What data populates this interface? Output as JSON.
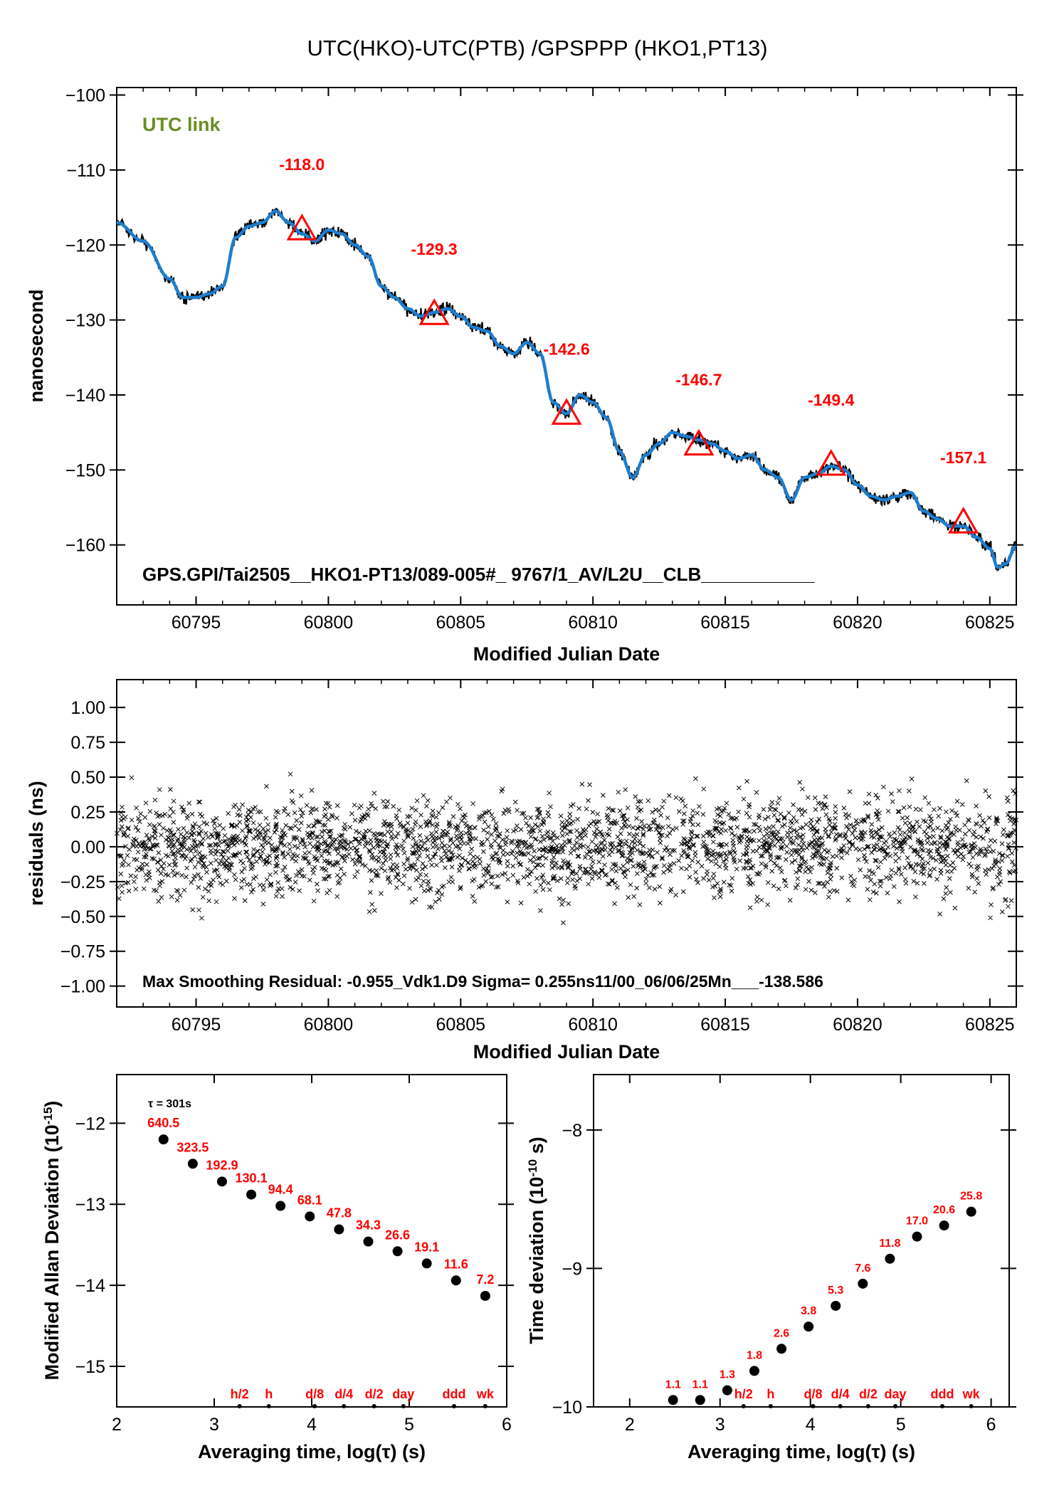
{
  "figure": {
    "title": "UTC(HKO)-UTC(PTB)  /GPSPPP  (HKO1,PT13)"
  },
  "chart_data": [
    {
      "id": "time-series",
      "type": "line",
      "title": "UTC(HKO)-UTC(PTB)  /GPSPPP  (HKO1,PT13)",
      "xlabel": "Modified Julian Date",
      "ylabel": "nanosecond",
      "xlim": [
        60792.0,
        60826.0
      ],
      "ylim": [
        -168,
        -99
      ],
      "xticks": [
        60795,
        60800,
        60805,
        60810,
        60815,
        60820,
        60825
      ],
      "xtick_labels": [
        "60795",
        "60800",
        "60805",
        "60810",
        "60815",
        "60820",
        "60825"
      ],
      "yticks": [
        -100,
        -110,
        -120,
        -130,
        -140,
        -150,
        -160
      ],
      "ytick_labels": [
        "−100",
        "−110",
        "−120",
        "−130",
        "−140",
        "−150",
        "−160"
      ],
      "legend_text": "UTC link",
      "footer_text": "GPS.GPI/Tai2505__HKO1-PT13/089-005#_  9767/1_AV/L2U__CLB___________",
      "series_colors": {
        "raw": "#000000",
        "smoothed": "#1e7ed0",
        "markers": "#ff0000",
        "legend": "#6b8e23"
      },
      "x": [
        60792.0,
        60793.0,
        60794.0,
        60794.5,
        60795.0,
        60795.5,
        60796.0,
        60796.5,
        60797.0,
        60797.5,
        60798.0,
        60798.5,
        60799.0,
        60799.5,
        60800.0,
        60800.5,
        60801.0,
        60801.5,
        60802.0,
        60802.5,
        60803.0,
        60803.5,
        60804.0,
        60804.5,
        60805.0,
        60805.5,
        60806.0,
        60806.5,
        60807.0,
        60807.5,
        60808.0,
        60808.5,
        60809.0,
        60809.5,
        60810.0,
        60810.5,
        60811.0,
        60811.5,
        60812.0,
        60812.5,
        60813.0,
        60813.5,
        60814.0,
        60814.5,
        60815.0,
        60815.5,
        60816.0,
        60816.5,
        60817.0,
        60817.5,
        60818.0,
        60818.5,
        60819.0,
        60819.5,
        60820.0,
        60820.5,
        60821.0,
        60821.5,
        60822.0,
        60822.5,
        60823.0,
        60823.5,
        60824.0,
        60824.5,
        60825.0,
        60825.3,
        60825.6,
        60826.0
      ],
      "y": [
        -117.0,
        -119.5,
        -124.5,
        -127.0,
        -127.0,
        -126.5,
        -125.5,
        -119.0,
        -117.5,
        -117.0,
        -115.5,
        -117.0,
        -118.5,
        -119.5,
        -118.0,
        -118.5,
        -120.0,
        -121.5,
        -125.5,
        -127.0,
        -128.5,
        -129.5,
        -129.0,
        -128.5,
        -129.5,
        -131.0,
        -131.5,
        -133.5,
        -134.5,
        -133.0,
        -134.5,
        -141.0,
        -142.5,
        -140.0,
        -141.0,
        -143.0,
        -147.5,
        -151.0,
        -148.0,
        -146.5,
        -145.0,
        -145.5,
        -146.0,
        -146.5,
        -147.5,
        -148.5,
        -148.0,
        -150.0,
        -151.0,
        -154.0,
        -151.0,
        -150.5,
        -149.5,
        -150.0,
        -152.0,
        -153.5,
        -154.0,
        -153.5,
        -153.0,
        -155.5,
        -156.5,
        -157.5,
        -157.5,
        -159.0,
        -160.5,
        -163.0,
        -162.5,
        -160.0
      ],
      "markers": [
        {
          "x": 60799,
          "y": -118.0,
          "label": "-118.0"
        },
        {
          "x": 60804,
          "y": -129.3,
          "label": "-129.3"
        },
        {
          "x": 60809,
          "y": -142.6,
          "label": "-142.6"
        },
        {
          "x": 60814,
          "y": -146.7,
          "label": "-146.7"
        },
        {
          "x": 60819,
          "y": -149.4,
          "label": "-149.4"
        },
        {
          "x": 60824,
          "y": -157.1,
          "label": "-157.1"
        }
      ]
    },
    {
      "id": "residuals",
      "type": "scatter",
      "xlabel": "Modified Julian Date",
      "ylabel": "residuals (ns)",
      "xlim": [
        60792.0,
        60826.0
      ],
      "ylim": [
        -1.15,
        1.2
      ],
      "xticks": [
        60795,
        60800,
        60805,
        60810,
        60815,
        60820,
        60825
      ],
      "xtick_labels": [
        "60795",
        "60800",
        "60805",
        "60810",
        "60815",
        "60820",
        "60825"
      ],
      "yticks": [
        1.0,
        0.75,
        0.5,
        0.25,
        0.0,
        -0.25,
        -0.5,
        -0.75,
        -1.0
      ],
      "ytick_labels": [
        "1.00",
        "0.75",
        "0.50",
        "0.25",
        "0.00",
        "−0.25",
        "−0.50",
        "−0.75",
        "−1.00"
      ],
      "footer_text": "Max Smoothing Residual: -0.955_Vdk1.D9  Sigma= 0.255ns11/00_06/06/25Mn___-138.586",
      "sigma": 0.255,
      "max_residual": -0.955
    },
    {
      "id": "mdev",
      "type": "scatter",
      "xlabel": "Averaging time, log(τ) (s)",
      "ylabel_main": "Modified Allan Deviation (10",
      "ylabel_exp": "-15",
      "ylabel_end": ")",
      "xlim": [
        2,
        6
      ],
      "ylim": [
        -15.5,
        -11.4
      ],
      "xticks": [
        2,
        3,
        4,
        5,
        6
      ],
      "xtick_labels": [
        "2",
        "3",
        "4",
        "5",
        "6"
      ],
      "yticks": [
        -12,
        -13,
        -14,
        -15
      ],
      "ytick_labels": [
        "−12",
        "−13",
        "−14",
        "−15"
      ],
      "tau_note": "τ = 301s",
      "points": [
        {
          "x": 2.48,
          "y": -12.2,
          "label": "640.5"
        },
        {
          "x": 2.78,
          "y": -12.5,
          "label": "323.5"
        },
        {
          "x": 3.08,
          "y": -12.72,
          "label": "192.9"
        },
        {
          "x": 3.38,
          "y": -12.88,
          "label": "130.1"
        },
        {
          "x": 3.68,
          "y": -13.02,
          "label": "94.4"
        },
        {
          "x": 3.98,
          "y": -13.15,
          "label": "68.1"
        },
        {
          "x": 4.28,
          "y": -13.31,
          "label": "47.8"
        },
        {
          "x": 4.58,
          "y": -13.46,
          "label": "34.3"
        },
        {
          "x": 4.88,
          "y": -13.58,
          "label": "26.6"
        },
        {
          "x": 5.18,
          "y": -13.73,
          "label": "19.1"
        },
        {
          "x": 5.48,
          "y": -13.94,
          "label": "11.6"
        },
        {
          "x": 5.78,
          "y": -14.13,
          "label": "7.2"
        }
      ],
      "time_marks": [
        {
          "x": 3.26,
          "label": "h/2"
        },
        {
          "x": 3.56,
          "label": "h"
        },
        {
          "x": 4.03,
          "label": "d/8"
        },
        {
          "x": 4.33,
          "label": "d/4"
        },
        {
          "x": 4.64,
          "label": "d/2"
        },
        {
          "x": 4.94,
          "label": "day"
        },
        {
          "x": 5.46,
          "label": "ddd"
        },
        {
          "x": 5.78,
          "label": "wk"
        }
      ]
    },
    {
      "id": "tdev",
      "type": "scatter",
      "xlabel": "Averaging time, log(τ) (s)",
      "ylabel_main": "Time deviation (10",
      "ylabel_exp": "-10",
      "ylabel_end": " s)",
      "xlim": [
        1.6,
        6.2
      ],
      "ylim": [
        -10.0,
        -7.6
      ],
      "xticks": [
        2,
        3,
        4,
        5,
        6
      ],
      "xtick_labels": [
        "2",
        "3",
        "4",
        "5",
        "6"
      ],
      "yticks": [
        -8,
        -9,
        -10
      ],
      "ytick_labels": [
        "−8",
        "−9",
        "−10"
      ],
      "points": [
        {
          "x": 2.48,
          "y": -9.95,
          "label": "1.1"
        },
        {
          "x": 2.78,
          "y": -9.95,
          "label": "1.1"
        },
        {
          "x": 3.08,
          "y": -9.88,
          "label": "1.3"
        },
        {
          "x": 3.38,
          "y": -9.74,
          "label": "1.8"
        },
        {
          "x": 3.68,
          "y": -9.58,
          "label": "2.6"
        },
        {
          "x": 3.98,
          "y": -9.42,
          "label": "3.8"
        },
        {
          "x": 4.28,
          "y": -9.27,
          "label": "5.3"
        },
        {
          "x": 4.58,
          "y": -9.11,
          "label": "7.6"
        },
        {
          "x": 4.88,
          "y": -8.93,
          "label": "11.8"
        },
        {
          "x": 5.18,
          "y": -8.77,
          "label": "17.0"
        },
        {
          "x": 5.48,
          "y": -8.69,
          "label": "20.6"
        },
        {
          "x": 5.78,
          "y": -8.59,
          "label": "25.8"
        }
      ],
      "time_marks": [
        {
          "x": 3.26,
          "label": "h/2"
        },
        {
          "x": 3.56,
          "label": "h"
        },
        {
          "x": 4.03,
          "label": "d/8"
        },
        {
          "x": 4.33,
          "label": "d/4"
        },
        {
          "x": 4.64,
          "label": "d/2"
        },
        {
          "x": 4.94,
          "label": "day"
        },
        {
          "x": 5.46,
          "label": "ddd"
        },
        {
          "x": 5.78,
          "label": "wk"
        }
      ]
    }
  ]
}
